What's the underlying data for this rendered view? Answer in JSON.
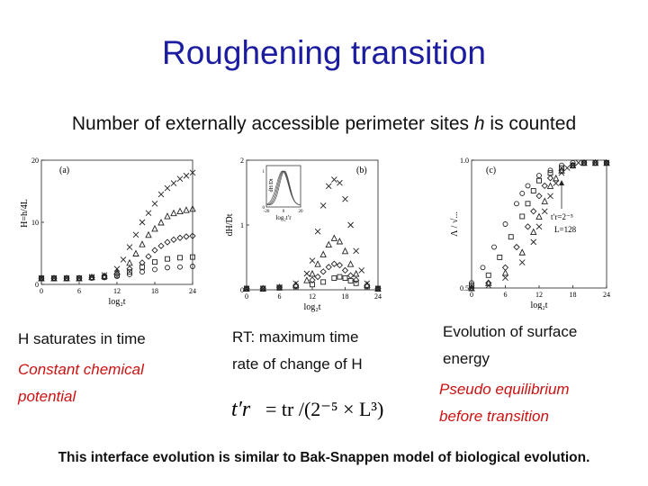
{
  "title": "Roughening transition",
  "subtitle": {
    "before": "Number of externally accessible perimeter sites ",
    "var": "h",
    "after": " is counted"
  },
  "captions": {
    "a_line1": "H saturates in time",
    "a_line2": "Constant chemical",
    "a_line3": "potential",
    "b_line1": "RT: maximum time",
    "b_line2": "rate of change of H",
    "c_line1": "Evolution of surface",
    "c_line2": "energy",
    "c_line3": "Pseudo equilibrium",
    "c_line4": "before transition"
  },
  "formula": {
    "lhs": "t′r",
    "rhs": "= tr /(2⁻⁵ × L³)"
  },
  "bottom_text": "This interface evolution is similar to Bak-Snappen model of biological evolution.",
  "chart_data": [
    {
      "type": "scatter",
      "panel_label": "(a)",
      "xlabel": "log₂t",
      "ylabel": "H=h/4L",
      "xlim": [
        0,
        24
      ],
      "ylim": [
        0,
        20
      ],
      "xticks": [
        "0",
        "6",
        "12",
        "18",
        "24"
      ],
      "yticks": [
        "0",
        "10",
        "20"
      ],
      "series": [
        {
          "marker": "x",
          "x": [
            0,
            2,
            4,
            6,
            8,
            10,
            12,
            13,
            14,
            15,
            16,
            17,
            18,
            19,
            20,
            21,
            22,
            23,
            24
          ],
          "y": [
            1,
            1,
            1,
            1,
            1.2,
            1.5,
            2.5,
            4,
            6,
            8,
            10,
            11.5,
            13,
            14.5,
            15.5,
            16.3,
            17,
            17.5,
            18
          ]
        },
        {
          "marker": "triangle",
          "x": [
            0,
            2,
            4,
            6,
            8,
            10,
            12,
            14,
            15,
            16,
            17,
            18,
            19,
            20,
            21,
            22,
            23,
            24
          ],
          "y": [
            1,
            1,
            1,
            1,
            1.2,
            1.4,
            2,
            3.5,
            5,
            6.5,
            8,
            9,
            10,
            11,
            11.5,
            11.8,
            12,
            12.2
          ]
        },
        {
          "marker": "diamond",
          "x": [
            0,
            2,
            4,
            6,
            8,
            10,
            12,
            14,
            16,
            17,
            18,
            19,
            20,
            21,
            22,
            23,
            24
          ],
          "y": [
            1,
            1,
            1,
            1,
            1.1,
            1.3,
            1.7,
            2.5,
            3.5,
            4.5,
            5.5,
            6.2,
            6.8,
            7.2,
            7.5,
            7.7,
            7.8
          ]
        },
        {
          "marker": "square",
          "x": [
            0,
            2,
            4,
            6,
            8,
            10,
            12,
            14,
            16,
            18,
            20,
            22,
            24
          ],
          "y": [
            1,
            1,
            1,
            1,
            1.1,
            1.2,
            1.5,
            2,
            2.8,
            3.6,
            4.1,
            4.3,
            4.4
          ]
        },
        {
          "marker": "circle",
          "x": [
            0,
            2,
            4,
            6,
            8,
            10,
            12,
            14,
            16,
            18,
            20,
            22,
            24
          ],
          "y": [
            1,
            1,
            1,
            1,
            1,
            1.1,
            1.3,
            1.6,
            2,
            2.4,
            2.7,
            2.8,
            2.9
          ]
        }
      ]
    },
    {
      "type": "scatter",
      "panel_label": "(b)",
      "xlabel": "log₂t",
      "ylabel": "dH/Dt",
      "xlim": [
        0,
        24
      ],
      "ylim": [
        0,
        2
      ],
      "xticks": [
        "0",
        "6",
        "12",
        "18",
        "24"
      ],
      "yticks": [
        "0",
        "1",
        "2"
      ],
      "inset": {
        "xlabel": "log₂t′r",
        "ylabel": "dH/Dt",
        "xticks": [
          "-20",
          "0",
          "20"
        ],
        "yticks": [
          "0",
          "1"
        ]
      },
      "series": [
        {
          "marker": "x",
          "x": [
            0,
            3,
            6,
            9,
            11,
            12,
            13,
            14,
            15,
            16,
            17,
            18,
            19,
            20,
            21,
            22,
            24
          ],
          "y": [
            0.02,
            0.02,
            0.04,
            0.1,
            0.25,
            0.45,
            0.9,
            1.3,
            1.6,
            1.7,
            1.65,
            1.4,
            1.0,
            0.6,
            0.3,
            0.1,
            0.02
          ]
        },
        {
          "marker": "triangle",
          "x": [
            0,
            3,
            6,
            9,
            11,
            12,
            13,
            14,
            15,
            16,
            17,
            18,
            19,
            20,
            22,
            24
          ],
          "y": [
            0.02,
            0.02,
            0.04,
            0.08,
            0.15,
            0.25,
            0.4,
            0.55,
            0.7,
            0.8,
            0.75,
            0.6,
            0.4,
            0.25,
            0.08,
            0.02
          ]
        },
        {
          "marker": "diamond",
          "x": [
            0,
            3,
            6,
            9,
            12,
            13,
            14,
            15,
            16,
            17,
            18,
            19,
            20,
            22,
            24
          ],
          "y": [
            0.02,
            0.02,
            0.04,
            0.06,
            0.15,
            0.2,
            0.28,
            0.35,
            0.4,
            0.38,
            0.3,
            0.22,
            0.15,
            0.06,
            0.02
          ]
        },
        {
          "marker": "square",
          "x": [
            0,
            3,
            6,
            9,
            12,
            14,
            16,
            17,
            18,
            19,
            20,
            22,
            24
          ],
          "y": [
            0.02,
            0.02,
            0.03,
            0.05,
            0.08,
            0.12,
            0.18,
            0.2,
            0.18,
            0.14,
            0.1,
            0.05,
            0.02
          ]
        }
      ]
    },
    {
      "type": "scatter",
      "panel_label": "(c)",
      "xlabel": "log₂t",
      "ylabel": "Λ / √...",
      "xlim": [
        0,
        24
      ],
      "ylim": [
        0.5,
        1.0
      ],
      "xticks": [
        "0",
        "6",
        "12",
        "18",
        "24"
      ],
      "yticks": [
        "0.5",
        "1.0"
      ],
      "annotations": [
        "t′r=2⁻⁵",
        "L=128"
      ],
      "series": [
        {
          "marker": "x",
          "x": [
            0,
            3,
            6,
            9,
            11,
            12,
            13,
            14,
            15,
            16,
            17,
            18,
            19,
            20,
            22,
            24
          ],
          "y": [
            0.5,
            0.51,
            0.54,
            0.6,
            0.68,
            0.74,
            0.8,
            0.86,
            0.91,
            0.95,
            0.97,
            0.98,
            0.99,
            0.99,
            0.99,
            0.99
          ]
        },
        {
          "marker": "triangle",
          "x": [
            0,
            3,
            6,
            9,
            11,
            12,
            13,
            14,
            15,
            16,
            18,
            20,
            22,
            24
          ],
          "y": [
            0.5,
            0.52,
            0.56,
            0.64,
            0.72,
            0.78,
            0.84,
            0.9,
            0.93,
            0.96,
            0.98,
            0.99,
            0.99,
            0.99
          ]
        },
        {
          "marker": "diamond",
          "x": [
            0,
            3,
            6,
            8,
            10,
            11,
            12,
            13,
            14,
            16,
            18,
            20,
            22,
            24
          ],
          "y": [
            0.5,
            0.52,
            0.58,
            0.66,
            0.74,
            0.8,
            0.86,
            0.9,
            0.93,
            0.96,
            0.98,
            0.99,
            0.99,
            0.99
          ]
        },
        {
          "marker": "square",
          "x": [
            0,
            3,
            5,
            7,
            9,
            10,
            11,
            12,
            14,
            16,
            18,
            20,
            22,
            24
          ],
          "y": [
            0.51,
            0.55,
            0.62,
            0.7,
            0.78,
            0.83,
            0.88,
            0.92,
            0.95,
            0.97,
            0.98,
            0.99,
            0.99,
            0.99
          ]
        },
        {
          "marker": "circle",
          "x": [
            0,
            2,
            4,
            6,
            8,
            9,
            10,
            12,
            14,
            16,
            18,
            20,
            22,
            24
          ],
          "y": [
            0.52,
            0.58,
            0.66,
            0.75,
            0.83,
            0.87,
            0.9,
            0.94,
            0.96,
            0.98,
            0.99,
            0.99,
            0.99,
            0.99
          ]
        }
      ]
    }
  ]
}
